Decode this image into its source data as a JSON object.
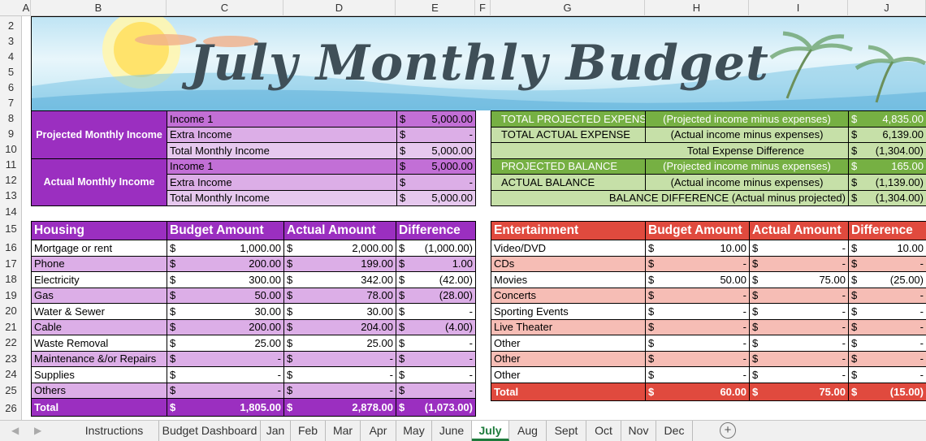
{
  "columns": [
    "A",
    "B",
    "C",
    "D",
    "E",
    "F",
    "G",
    "H",
    "I",
    "J"
  ],
  "rows": [
    "2",
    "3",
    "4",
    "5",
    "6",
    "7",
    "8",
    "9",
    "10",
    "11",
    "12",
    "13",
    "14",
    "15",
    "16",
    "17",
    "18",
    "19",
    "20",
    "21",
    "22",
    "23",
    "24",
    "25",
    "26"
  ],
  "title": "July Monthly Budget",
  "income": {
    "projected_label": "Projected Monthly Income",
    "actual_label": "Actual Monthly Income",
    "projected": [
      {
        "label": "Income 1",
        "cur": "$",
        "value": "5,000.00"
      },
      {
        "label": "Extra Income",
        "cur": "$",
        "value": "-"
      },
      {
        "label": "Total Monthly Income",
        "cur": "$",
        "value": "5,000.00"
      }
    ],
    "actual": [
      {
        "label": "Income 1",
        "cur": "$",
        "value": "5,000.00"
      },
      {
        "label": "Extra Income",
        "cur": "$",
        "value": "-"
      },
      {
        "label": "Total Monthly Income",
        "cur": "$",
        "value": "5,000.00"
      }
    ]
  },
  "summary": [
    {
      "label": "TOTAL PROJECTED EXPENSE",
      "note": "(Projected income minus expenses)",
      "cur": "$",
      "value": "4,835.00"
    },
    {
      "label": "TOTAL ACTUAL EXPENSE",
      "note": "(Actual income minus expenses)",
      "cur": "$",
      "value": "6,139.00"
    },
    {
      "label": "",
      "note": "Total Expense Difference",
      "cur": "$",
      "value": "(1,304.00)"
    },
    {
      "label": "PROJECTED BALANCE",
      "note": "(Projected income minus expenses)",
      "cur": "$",
      "value": "165.00"
    },
    {
      "label": "ACTUAL BALANCE",
      "note": "(Actual income minus expenses)",
      "cur": "$",
      "value": "(1,139.00)"
    },
    {
      "label": "",
      "note": "BALANCE DIFFERENCE (Actual minus projected)",
      "cur": "$",
      "value": "(1,304.00)"
    }
  ],
  "housing": {
    "headers": [
      "Housing",
      "Budget Amount",
      "Actual Amount",
      "Difference"
    ],
    "rows": [
      [
        "Mortgage or rent",
        "1,000.00",
        "2,000.00",
        "(1,000.00)"
      ],
      [
        "Phone",
        "200.00",
        "199.00",
        "1.00"
      ],
      [
        "Electricity",
        "300.00",
        "342.00",
        "(42.00)"
      ],
      [
        "Gas",
        "50.00",
        "78.00",
        "(28.00)"
      ],
      [
        "Water & Sewer",
        "30.00",
        "30.00",
        "-"
      ],
      [
        "Cable",
        "200.00",
        "204.00",
        "(4.00)"
      ],
      [
        "Waste Removal",
        "25.00",
        "25.00",
        "-"
      ],
      [
        "Maintenance &/or Repairs",
        "-",
        "-",
        "-"
      ],
      [
        "Supplies",
        "-",
        "-",
        "-"
      ],
      [
        "Others",
        "-",
        "-",
        "-"
      ]
    ],
    "total": [
      "Total",
      "1,805.00",
      "2,878.00",
      "(1,073.00)"
    ]
  },
  "entertainment": {
    "headers": [
      "Entertainment",
      "Budget Amount",
      "Actual Amount",
      "Difference"
    ],
    "rows": [
      [
        "Video/DVD",
        "10.00",
        "-",
        "10.00"
      ],
      [
        "CDs",
        "-",
        "-",
        "-"
      ],
      [
        "Movies",
        "50.00",
        "75.00",
        "(25.00)"
      ],
      [
        "Concerts",
        "-",
        "-",
        "-"
      ],
      [
        "Sporting Events",
        "-",
        "-",
        "-"
      ],
      [
        "Live Theater",
        "-",
        "-",
        "-"
      ],
      [
        "Other",
        "-",
        "-",
        "-"
      ],
      [
        "Other",
        "-",
        "-",
        "-"
      ],
      [
        "Other",
        "-",
        "-",
        "-"
      ]
    ],
    "total": [
      "Total",
      "60.00",
      "75.00",
      "(15.00)"
    ]
  },
  "currency": "$",
  "tabs": [
    "Instructions",
    "Budget Dashboard",
    "Jan",
    "Feb",
    "Mar",
    "Apr",
    "May",
    "June",
    "July",
    "Aug",
    "Sept",
    "Oct",
    "Nov",
    "Dec"
  ],
  "active_tab": "July",
  "add_sheet": "+",
  "colors": {
    "purple_dark": "#9b2fc0",
    "purple_mid": "#c26fd6",
    "purple_light": "#dcaee7",
    "green_dark": "#76b043",
    "green_light": "#c6e0a8",
    "red_dark": "#e04a3e",
    "red_light": "#f6bdb5"
  }
}
